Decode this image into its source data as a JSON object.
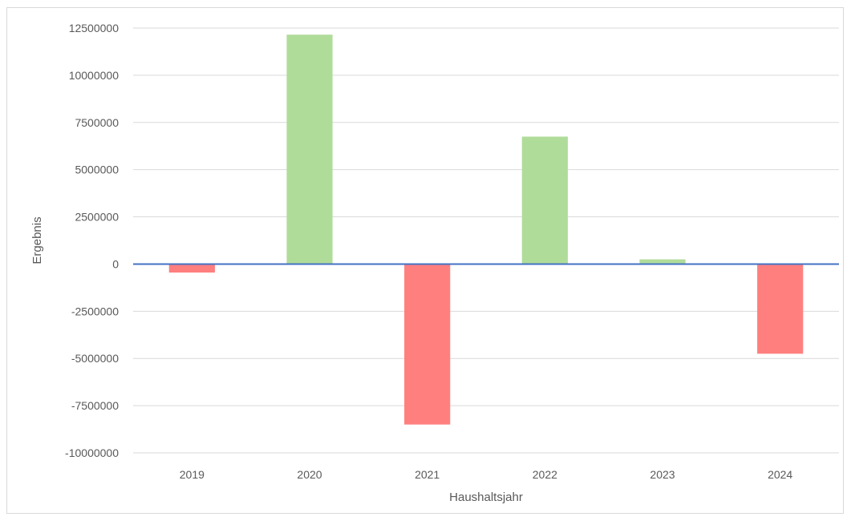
{
  "chart_data": {
    "type": "bar",
    "title": "",
    "xlabel": "Haushaltsjahr",
    "ylabel": "Ergebnis",
    "categories": [
      "2019",
      "2020",
      "2021",
      "2022",
      "2023",
      "2024"
    ],
    "values": [
      -450000,
      12150000,
      -8500000,
      6750000,
      250000,
      -4750000
    ],
    "ylim": [
      -10000000,
      12500000
    ],
    "yticks": [
      12500000,
      10000000,
      7500000,
      5000000,
      2500000,
      0,
      -2500000,
      -5000000,
      -7500000,
      -10000000
    ],
    "ytick_labels": [
      "12500000",
      "10000000",
      "7500000",
      "5000000",
      "2500000",
      "0",
      "-2500000",
      "-5000000",
      "-7500000",
      "-10000000"
    ],
    "grid": true,
    "legend": "none",
    "colors": {
      "positive": "#b0dc9a",
      "negative": "#ff7f7f",
      "zero_line": "#4472c4",
      "grid": "#d9d9d9",
      "text": "#595959"
    }
  }
}
